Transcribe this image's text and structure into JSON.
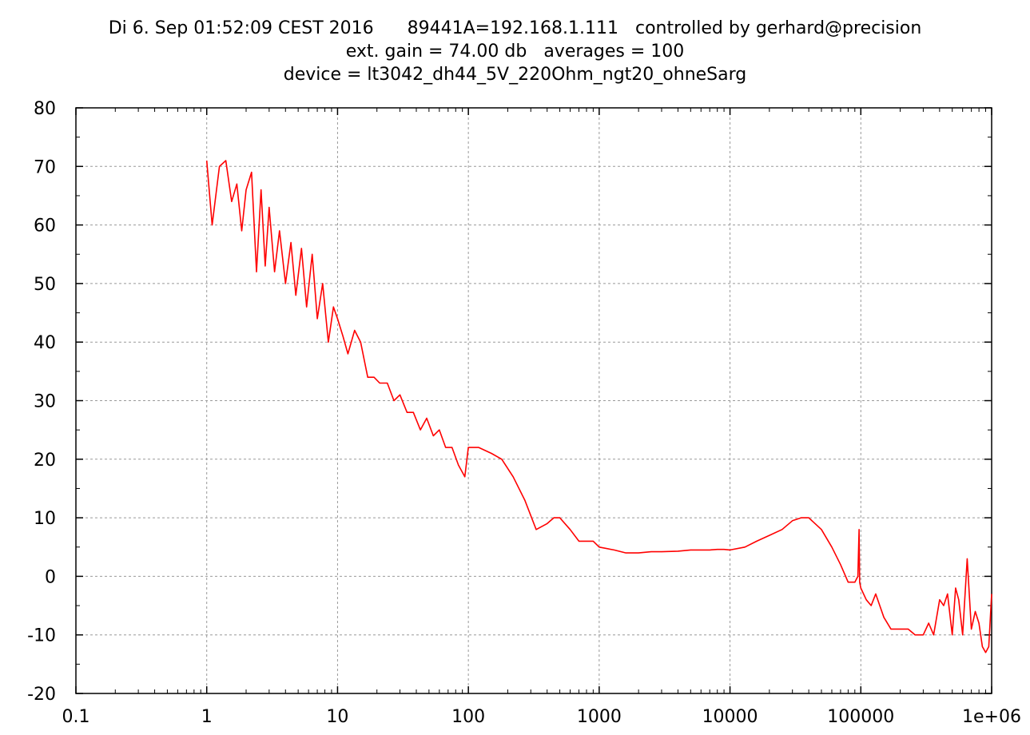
{
  "chart_data": {
    "type": "line",
    "title_lines": [
      "Di 6. Sep 01:52:09 CEST 2016      89441A=192.168.1.111   controlled by gerhard@precision",
      "ext. gain = 74.00 db   averages = 100",
      "device = lt3042_dh44_5V_220Ohm_ngt20_ohneSarg"
    ],
    "xlabel": "",
    "ylabel": "",
    "x_scale": "log",
    "xlim": [
      0.1,
      1000000
    ],
    "ylim": [
      -20,
      80
    ],
    "x_ticks": [
      0.1,
      1,
      10,
      100,
      1000,
      10000,
      100000,
      1000000
    ],
    "x_tick_labels": [
      "0.1",
      "1",
      "10",
      "100",
      "1000",
      "10000",
      "100000",
      "1e+06"
    ],
    "y_ticks": [
      -20,
      -10,
      0,
      10,
      20,
      30,
      40,
      50,
      60,
      70,
      80
    ],
    "y_tick_labels": [
      "-20",
      "-10",
      "0",
      "10",
      "20",
      "30",
      "40",
      "50",
      "60",
      "70",
      "80"
    ],
    "grid": true,
    "line_color": "#ff0000",
    "series": [
      {
        "x": [
          1,
          1.1,
          1.25,
          1.4,
          1.55,
          1.7,
          1.85,
          2.0,
          2.2,
          2.4,
          2.6,
          2.8,
          3.0,
          3.3,
          3.6,
          4.0,
          4.4,
          4.8,
          5.3,
          5.8,
          6.4,
          7.0,
          7.7,
          8.5,
          9.3,
          10,
          11,
          12,
          13.5,
          15,
          17,
          19,
          21,
          24,
          27,
          30,
          34,
          38,
          43,
          48,
          54,
          60,
          67,
          75,
          84,
          94,
          100,
          120,
          150,
          180,
          220,
          270,
          330,
          400,
          450,
          500,
          600,
          700,
          800,
          900,
          1000,
          1300,
          1600,
          2000,
          2500,
          3000,
          4000,
          5000,
          6000,
          7000,
          8000,
          9000,
          10000,
          13000,
          16000,
          20000,
          25000,
          30000,
          35000,
          40000,
          50000,
          60000,
          70000,
          80000,
          90000,
          95000,
          97000,
          98000,
          100000,
          110000,
          120000,
          130000,
          150000,
          170000,
          200000,
          230000,
          260000,
          300000,
          330000,
          360000,
          400000,
          430000,
          460000,
          500000,
          530000,
          560000,
          600000,
          650000,
          700000,
          750000,
          800000,
          850000,
          900000,
          950000,
          1000000
        ],
        "y": [
          71,
          60,
          70,
          71,
          64,
          67,
          59,
          66,
          69,
          52,
          66,
          53,
          63,
          52,
          59,
          50,
          57,
          48,
          56,
          46,
          55,
          44,
          50,
          40,
          46,
          44,
          41,
          38,
          42,
          40,
          34,
          34,
          33,
          33,
          30,
          31,
          28,
          28,
          25,
          27,
          24,
          25,
          22,
          22,
          19,
          17,
          22,
          22,
          21,
          20,
          17,
          13,
          8,
          9,
          10,
          10,
          8,
          6,
          6,
          6,
          5,
          4.5,
          4,
          4,
          4.2,
          4.2,
          4.3,
          4.5,
          4.5,
          4.5,
          4.6,
          4.6,
          4.5,
          5,
          6,
          7,
          8,
          9.5,
          10,
          10,
          8,
          5,
          2,
          -1,
          -1,
          0,
          8,
          -1,
          -2,
          -4,
          -5,
          -3,
          -7,
          -9,
          -9,
          -9,
          -10,
          -10,
          -8,
          -10,
          -4,
          -5,
          -3,
          -10,
          -2,
          -4,
          -10,
          3,
          -9,
          -6,
          -8,
          -12,
          -13,
          -12,
          -3
        ]
      }
    ]
  }
}
